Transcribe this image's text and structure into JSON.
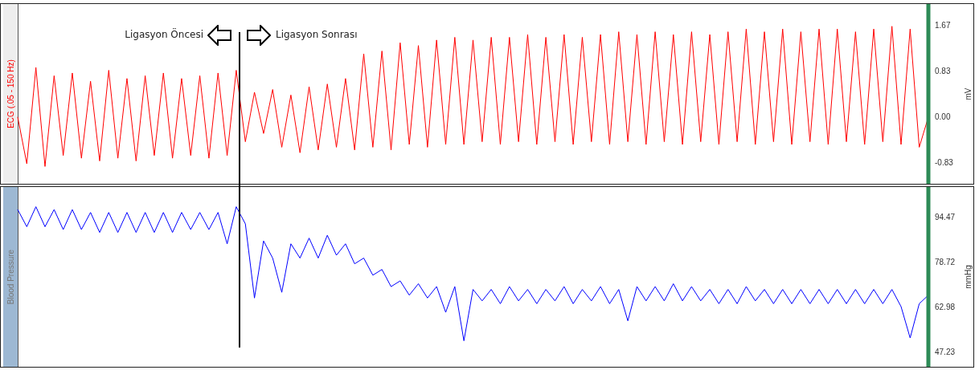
{
  "chart_data": [
    {
      "type": "line",
      "title": "ECG (.05 - 150 Hz)",
      "ylabel": "mV",
      "ylim": [
        -1.23,
        2.07
      ],
      "yticks": [
        -0.83,
        {
          "value": 0,
          "label": "0.00"
        },
        0.83,
        1.67
      ],
      "tick_labels": "y",
      "categories": [
        null,
        null,
        null,
        null,
        null,
        null,
        null,
        null,
        null,
        null,
        null,
        null,
        null,
        null,
        null,
        null,
        null,
        null,
        null,
        null,
        null,
        null,
        null,
        null,
        null,
        null,
        null,
        null,
        null,
        null,
        null,
        null,
        null,
        null,
        null,
        null,
        null,
        null,
        null,
        null,
        null,
        null,
        null,
        null,
        null,
        null,
        null,
        null,
        null,
        null,
        null,
        null,
        null,
        null,
        null,
        null,
        null,
        null,
        null,
        null,
        null,
        null,
        null,
        null,
        null,
        null,
        null,
        null,
        null,
        null,
        null,
        null,
        null,
        null,
        null,
        null,
        null,
        null,
        null,
        null,
        null,
        null,
        null,
        null,
        null,
        null,
        null,
        null,
        null,
        null,
        null,
        null,
        null,
        null,
        null,
        null,
        null,
        null,
        null,
        null,
        null
      ],
      "series": [
        {
          "color": "#ff0000",
          "values": [
            0.0,
            -0.85,
            0.9,
            -0.9,
            0.75,
            -0.7,
            0.8,
            -0.75,
            0.65,
            -0.8,
            0.85,
            -0.75,
            0.7,
            -0.8,
            0.75,
            -0.7,
            0.8,
            -0.75,
            0.7,
            -0.7,
            0.75,
            -0.75,
            0.8,
            -0.7,
            0.85,
            -0.45,
            0.45,
            -0.3,
            0.5,
            -0.55,
            0.4,
            -0.65,
            0.55,
            -0.6,
            0.6,
            -0.55,
            0.7,
            -0.6,
            1.15,
            -0.55,
            1.2,
            -0.6,
            1.35,
            -0.5,
            1.3,
            -0.55,
            1.4,
            -0.5,
            1.45,
            -0.5,
            1.4,
            -0.45,
            1.45,
            -0.5,
            1.45,
            -0.45,
            1.5,
            -0.5,
            1.45,
            -0.45,
            1.5,
            -0.5,
            1.45,
            -0.45,
            1.5,
            -0.5,
            1.55,
            -0.45,
            1.5,
            -0.5,
            1.55,
            -0.45,
            1.5,
            -0.5,
            1.55,
            -0.45,
            1.5,
            -0.5,
            1.55,
            -0.45,
            1.6,
            -0.5,
            1.55,
            -0.45,
            1.6,
            -0.5,
            1.55,
            -0.45,
            1.6,
            -0.5,
            1.6,
            -0.45,
            1.55,
            -0.5,
            1.6,
            -0.45,
            1.65,
            -0.5,
            1.6,
            -0.55,
            0.0
          ]
        }
      ],
      "annotations": [
        "Ligasyon Öncesi",
        "Ligasyon Sonrası"
      ]
    },
    {
      "type": "line",
      "title": "Blood Pressure",
      "ylabel": "mmHg",
      "ylim": [
        41.6,
        105.2
      ],
      "yticks": [
        47.23,
        62.98,
        78.72,
        94.47
      ],
      "categories": [
        null,
        null,
        null,
        null,
        null,
        null,
        null,
        null,
        null,
        null,
        null,
        null,
        null,
        null,
        null,
        null,
        null,
        null,
        null,
        null,
        null,
        null,
        null,
        null,
        null,
        null,
        null,
        null,
        null,
        null,
        null,
        null,
        null,
        null,
        null,
        null,
        null,
        null,
        null,
        null,
        null,
        null,
        null,
        null,
        null,
        null,
        null,
        null,
        null,
        null,
        null,
        null,
        null,
        null,
        null,
        null,
        null,
        null,
        null,
        null,
        null,
        null,
        null,
        null,
        null,
        null,
        null,
        null,
        null,
        null,
        null,
        null,
        null,
        null,
        null,
        null,
        null,
        null,
        null,
        null,
        null,
        null,
        null,
        null,
        null,
        null,
        null,
        null,
        null,
        null,
        null,
        null,
        null,
        null,
        null,
        null,
        null,
        null,
        null,
        null,
        null
      ],
      "series": [
        {
          "color": "#0000ff",
          "values": [
            97,
            91,
            98,
            91,
            97,
            90,
            97,
            90,
            96,
            89,
            96,
            89,
            96,
            89,
            96,
            89,
            96,
            89,
            96,
            90,
            96,
            90,
            96,
            85,
            98,
            92,
            66,
            86,
            80,
            68,
            85,
            80,
            87,
            80,
            88,
            81,
            85,
            78,
            80,
            74,
            76,
            70,
            72,
            67,
            71,
            66,
            70,
            61,
            70,
            51,
            69,
            65,
            69,
            64,
            70,
            65,
            69,
            64,
            69,
            65,
            70,
            64,
            69,
            65,
            70,
            64,
            69,
            58,
            70,
            65,
            70,
            65,
            71,
            65,
            70,
            65,
            69,
            64,
            69,
            64,
            70,
            65,
            69,
            64,
            69,
            64,
            69,
            64,
            69,
            64,
            69,
            64,
            69,
            64,
            69,
            64,
            69,
            63,
            52,
            64,
            67
          ]
        }
      ],
      "tick_labels": "y"
    }
  ]
}
